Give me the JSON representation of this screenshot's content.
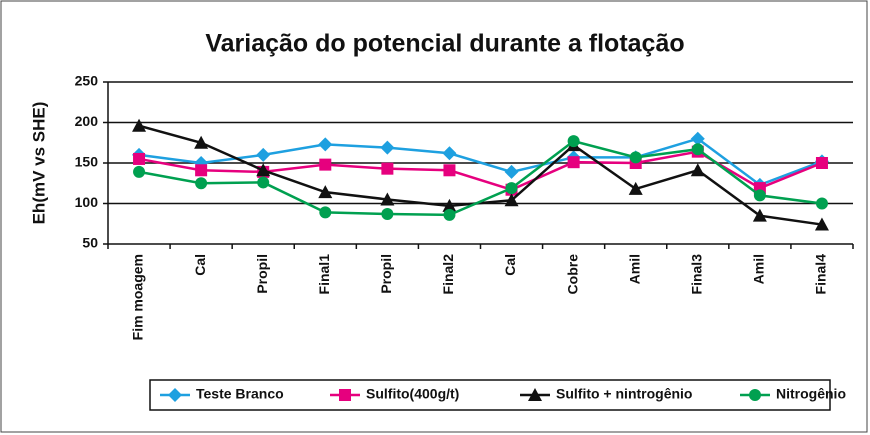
{
  "chart_data": {
    "type": "line",
    "title": "Variação do potencial durante a flotação",
    "y_label": "Eh(mV vs SHE)",
    "categories": [
      "Fim moagem",
      "Cal",
      "Propil",
      "Final1",
      "Propil",
      "Final2",
      "Cal",
      "Cobre",
      "Amil",
      "Final3",
      "Amil",
      "Final4"
    ],
    "series": [
      {
        "name": "Teste Branco",
        "color": "#1ea0e0",
        "marker": "diamond",
        "values": [
          160,
          150,
          160,
          173,
          169,
          162,
          139,
          157,
          157,
          180,
          123,
          152
        ]
      },
      {
        "name": "Sulfito(400g/t)",
        "color": "#e6007e",
        "marker": "square",
        "values": [
          155,
          141,
          139,
          148,
          143,
          141,
          117,
          151,
          150,
          164,
          119,
          150
        ]
      },
      {
        "name": "Sulfito + nintrogênio",
        "color": "#111111",
        "marker": "triangle",
        "values": [
          196,
          175,
          141,
          114,
          105,
          97,
          104,
          172,
          118,
          141,
          85,
          74
        ]
      },
      {
        "name": "Nitrogênio",
        "color": "#00a050",
        "marker": "circle",
        "values": [
          139,
          125,
          126,
          89,
          87,
          86,
          119,
          177,
          157,
          167,
          110,
          100
        ]
      }
    ],
    "ylim": [
      50,
      250
    ],
    "yticks": [
      50,
      100,
      150,
      200,
      250
    ],
    "grid": true
  }
}
